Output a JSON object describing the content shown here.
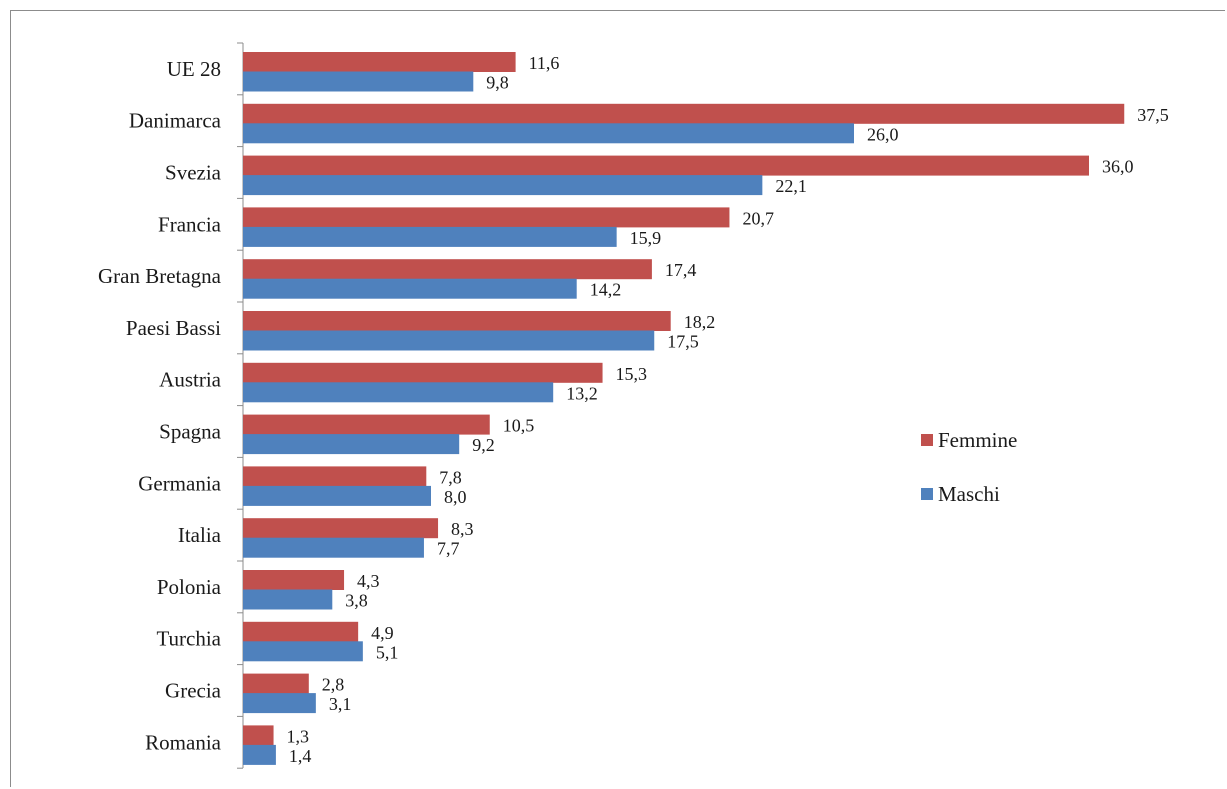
{
  "chart_data": {
    "type": "bar",
    "orientation": "horizontal",
    "categories": [
      "UE 28",
      "Danimarca",
      "Svezia",
      "Francia",
      "Gran Bretagna",
      "Paesi Bassi",
      "Austria",
      "Spagna",
      "Germania",
      "Italia",
      "Polonia",
      "Turchia",
      "Grecia",
      "Romania"
    ],
    "series": [
      {
        "name": "Femmine",
        "color": "#c0504d",
        "values": [
          11.6,
          37.5,
          36.0,
          20.7,
          17.4,
          18.2,
          15.3,
          10.5,
          7.8,
          8.3,
          4.3,
          4.9,
          2.8,
          1.3
        ],
        "labels": [
          "11,6",
          "37,5",
          "36,0",
          "20,7",
          "17,4",
          "18,2",
          "15,3",
          "10,5",
          "7,8",
          "8,3",
          "4,3",
          "4,9",
          "2,8",
          "1,3"
        ]
      },
      {
        "name": "Maschi",
        "color": "#4f81bd",
        "values": [
          9.8,
          26.0,
          22.1,
          15.9,
          14.2,
          17.5,
          13.2,
          9.2,
          8.0,
          7.7,
          3.8,
          5.1,
          3.1,
          1.4
        ],
        "labels": [
          "9,8",
          "26,0",
          "22,1",
          "15,9",
          "14,2",
          "17,5",
          "13,2",
          "9,2",
          "8,0",
          "7,7",
          "3,8",
          "5,1",
          "3,1",
          "1,4"
        ]
      }
    ],
    "title": "",
    "xlabel": "",
    "ylabel": "",
    "xlim": [
      0,
      40
    ],
    "grid": false,
    "legend_position": "right-middle"
  }
}
